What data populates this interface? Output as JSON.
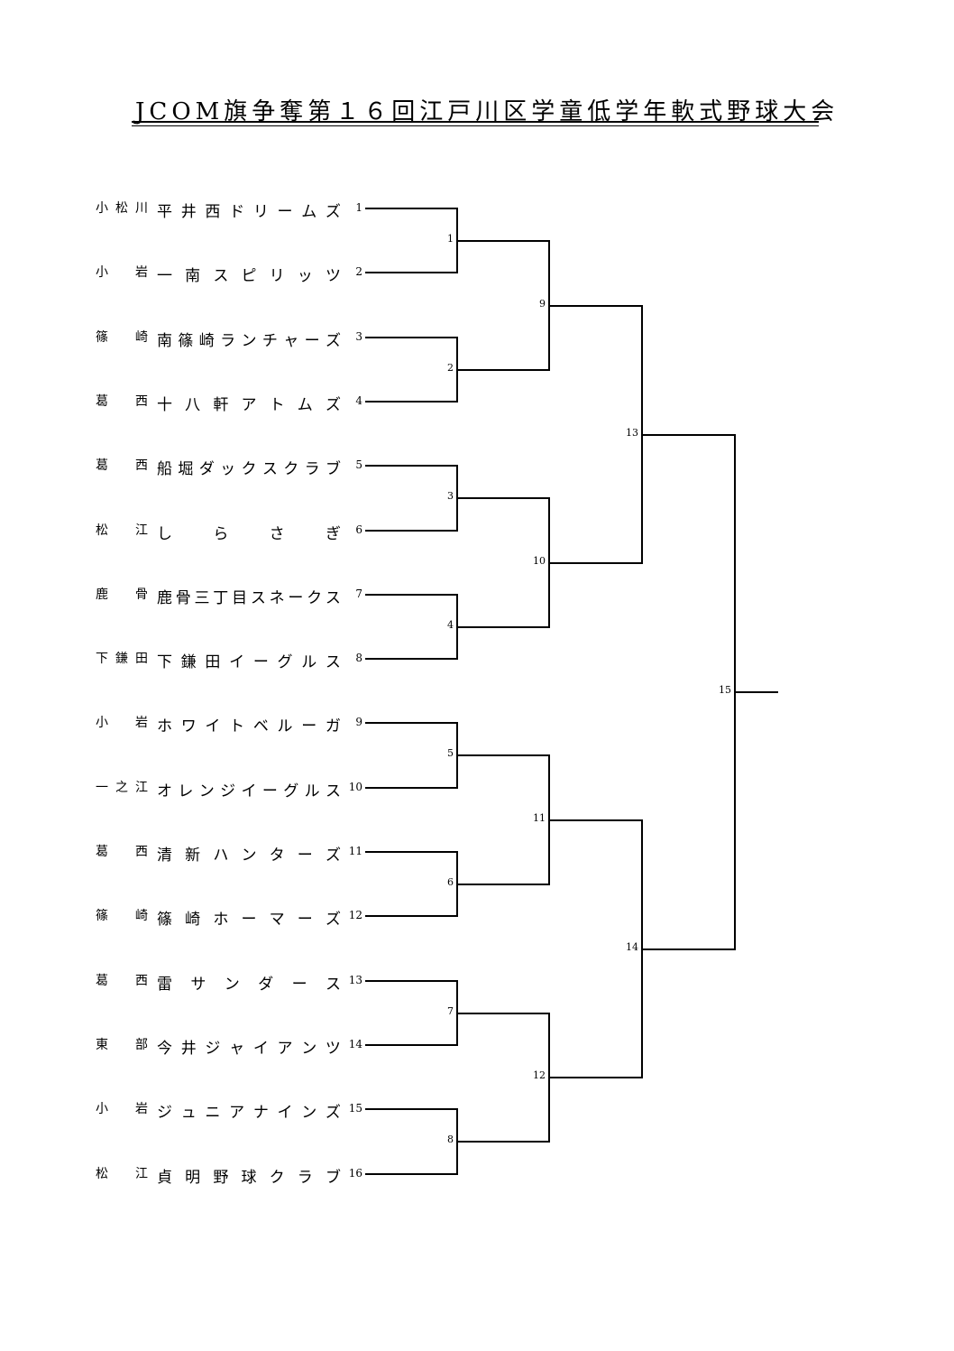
{
  "title": "JCOM旗争奪第１６回江戸川区学童低学年軟式野球大会",
  "teams": [
    {
      "seed": "1",
      "district": "小松川",
      "name": "平 井 西ドリームズ"
    },
    {
      "seed": "2",
      "district": "小 岩",
      "name": "一 南 スピリッツ"
    },
    {
      "seed": "3",
      "district": "篠 崎",
      "name": "南篠崎ランチャーズ"
    },
    {
      "seed": "4",
      "district": "葛 西",
      "name": "十 八 軒 ア ト ム ズ"
    },
    {
      "seed": "5",
      "district": "葛 西",
      "name": "船 堀ダックスクラブ"
    },
    {
      "seed": "6",
      "district": "松 江",
      "name": "し ら さ ぎ"
    },
    {
      "seed": "7",
      "district": "鹿 骨",
      "name": "鹿骨三丁目スネークス"
    },
    {
      "seed": "8",
      "district": "下鎌田",
      "name": "下 鎌 田 イーグルス"
    },
    {
      "seed": "9",
      "district": "小 岩",
      "name": "ホワイトベルーガ"
    },
    {
      "seed": "10",
      "district": "一之江",
      "name": "オレンジイーグルス"
    },
    {
      "seed": "11",
      "district": "葛 西",
      "name": "清 新 ハ ン タ ー ズ"
    },
    {
      "seed": "12",
      "district": "篠 崎",
      "name": "篠 崎 ホ ー マ ー ズ"
    },
    {
      "seed": "13",
      "district": "葛 西",
      "name": "雷 サ ン ダ ー ス"
    },
    {
      "seed": "14",
      "district": "東 部",
      "name": "今 井 ジャイアンツ"
    },
    {
      "seed": "15",
      "district": "小 岩",
      "name": "ジュニアナインズ"
    },
    {
      "seed": "16",
      "district": "松 江",
      "name": "貞 明 野 球 ク ラ ブ"
    }
  ],
  "matches": [
    "1",
    "2",
    "3",
    "4",
    "5",
    "6",
    "7",
    "8",
    "9",
    "10",
    "11",
    "12",
    "13",
    "14",
    "15"
  ]
}
